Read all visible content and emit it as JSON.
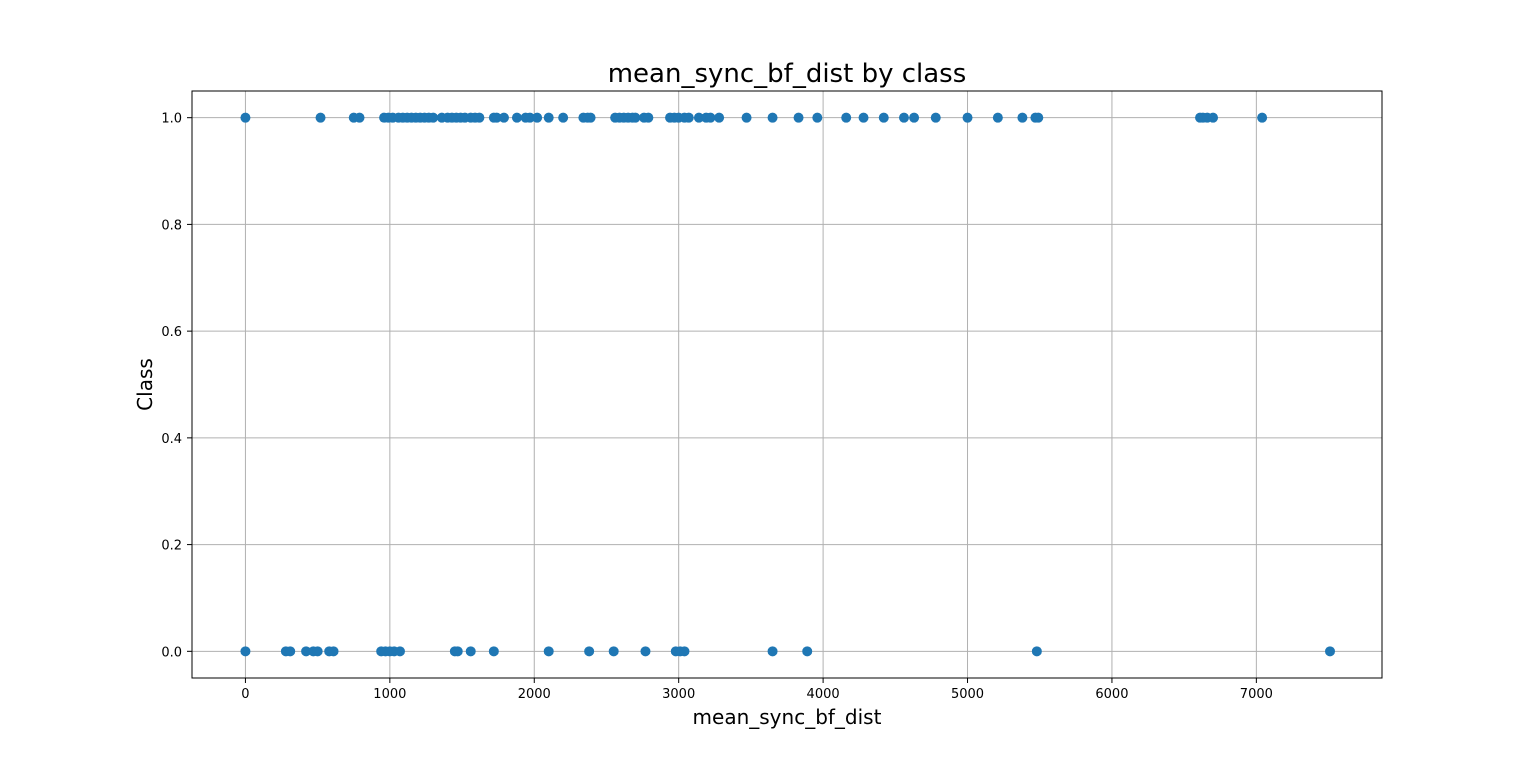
{
  "chart_data": {
    "type": "scatter",
    "title": "mean_sync_bf_dist by class",
    "xlabel": "mean_sync_bf_dist",
    "ylabel": "Class",
    "xlim": [
      -370,
      7870
    ],
    "ylim": [
      -0.05,
      1.05
    ],
    "xticks": [
      0,
      1000,
      2000,
      3000,
      4000,
      5000,
      6000,
      7000
    ],
    "yticks": [
      0.0,
      0.2,
      0.4,
      0.6,
      0.8,
      1.0
    ],
    "xtick_labels": [
      "0",
      "1000",
      "2000",
      "3000",
      "4000",
      "5000",
      "6000",
      "7000"
    ],
    "ytick_labels": [
      "0.0",
      "0.2",
      "0.4",
      "0.6",
      "0.8",
      "1.0"
    ],
    "grid": true,
    "marker_color": "#1f77b4",
    "series": [
      {
        "points": [
          [
            0,
            1
          ],
          [
            520,
            1
          ],
          [
            750,
            1
          ],
          [
            790,
            1
          ],
          [
            960,
            1
          ],
          [
            990,
            1
          ],
          [
            1020,
            1
          ],
          [
            1060,
            1
          ],
          [
            1090,
            1
          ],
          [
            1120,
            1
          ],
          [
            1150,
            1
          ],
          [
            1180,
            1
          ],
          [
            1210,
            1
          ],
          [
            1240,
            1
          ],
          [
            1270,
            1
          ],
          [
            1300,
            1
          ],
          [
            1360,
            1
          ],
          [
            1400,
            1
          ],
          [
            1430,
            1
          ],
          [
            1460,
            1
          ],
          [
            1490,
            1
          ],
          [
            1520,
            1
          ],
          [
            1560,
            1
          ],
          [
            1590,
            1
          ],
          [
            1620,
            1
          ],
          [
            1720,
            1
          ],
          [
            1740,
            1
          ],
          [
            1790,
            1
          ],
          [
            1880,
            1
          ],
          [
            1940,
            1
          ],
          [
            1970,
            1
          ],
          [
            2020,
            1
          ],
          [
            2100,
            1
          ],
          [
            2200,
            1
          ],
          [
            2340,
            1
          ],
          [
            2370,
            1
          ],
          [
            2390,
            1
          ],
          [
            2560,
            1
          ],
          [
            2590,
            1
          ],
          [
            2620,
            1
          ],
          [
            2650,
            1
          ],
          [
            2680,
            1
          ],
          [
            2700,
            1
          ],
          [
            2760,
            1
          ],
          [
            2790,
            1
          ],
          [
            2940,
            1
          ],
          [
            2970,
            1
          ],
          [
            3000,
            1
          ],
          [
            3040,
            1
          ],
          [
            3070,
            1
          ],
          [
            3140,
            1
          ],
          [
            3190,
            1
          ],
          [
            3220,
            1
          ],
          [
            3280,
            1
          ],
          [
            3470,
            1
          ],
          [
            3650,
            1
          ],
          [
            3830,
            1
          ],
          [
            3960,
            1
          ],
          [
            4160,
            1
          ],
          [
            4280,
            1
          ],
          [
            4420,
            1
          ],
          [
            4560,
            1
          ],
          [
            4630,
            1
          ],
          [
            4780,
            1
          ],
          [
            5000,
            1
          ],
          [
            5210,
            1
          ],
          [
            5380,
            1
          ],
          [
            5470,
            1
          ],
          [
            5490,
            1
          ],
          [
            6610,
            1
          ],
          [
            6630,
            1
          ],
          [
            6660,
            1
          ],
          [
            6700,
            1
          ],
          [
            7040,
            1
          ],
          [
            0,
            0
          ],
          [
            280,
            0
          ],
          [
            310,
            0
          ],
          [
            420,
            0
          ],
          [
            470,
            0
          ],
          [
            500,
            0
          ],
          [
            580,
            0
          ],
          [
            610,
            0
          ],
          [
            940,
            0
          ],
          [
            970,
            0
          ],
          [
            1000,
            0
          ],
          [
            1030,
            0
          ],
          [
            1070,
            0
          ],
          [
            1450,
            0
          ],
          [
            1470,
            0
          ],
          [
            1560,
            0
          ],
          [
            1720,
            0
          ],
          [
            2100,
            0
          ],
          [
            2380,
            0
          ],
          [
            2550,
            0
          ],
          [
            2770,
            0
          ],
          [
            2980,
            0
          ],
          [
            3010,
            0
          ],
          [
            3040,
            0
          ],
          [
            3650,
            0
          ],
          [
            3890,
            0
          ],
          [
            5480,
            0
          ],
          [
            7510,
            0
          ]
        ]
      }
    ]
  }
}
